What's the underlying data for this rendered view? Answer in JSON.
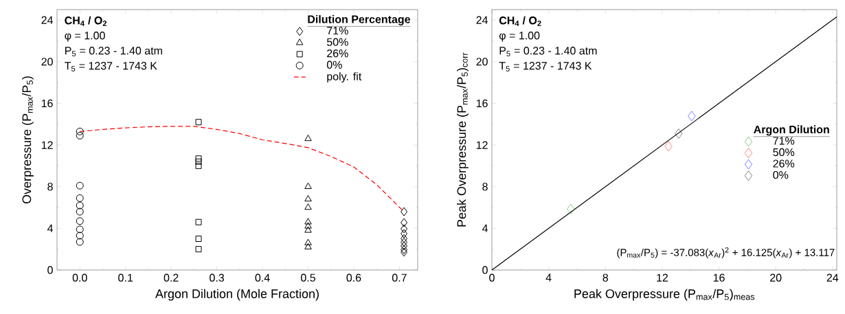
{
  "chart_data": [
    {
      "type": "scatter",
      "xlabel": "Argon Dilution (Mole Fraction)",
      "ylabel": "Overpressure (P$_{max}$/P$_{5}$)",
      "xlim": [
        -0.05,
        0.74
      ],
      "ylim": [
        0,
        25
      ],
      "xticks": [
        {
          "value": 0,
          "label": "0.0"
        },
        0.1,
        0.2,
        0.3,
        0.4,
        0.5,
        0.6,
        0.7
      ],
      "yticks": [
        0,
        4,
        8,
        12,
        16,
        20,
        24
      ],
      "legend": "top right",
      "legend_title": "Dilution Percentage",
      "annotations": [
        "CH$_{4}$ / O$_{2}$",
        "φ = 1.00",
        "P$_{5}$ = 0.23 - 1.40 atm",
        "T$_{5}$ = 1237 - 1743 K"
      ],
      "series": [
        {
          "name": "71%",
          "color": "#000000",
          "marker": "diamond",
          "x": [
            0.71,
            0.71,
            0.71,
            0.71,
            0.71,
            0.71,
            0.71,
            0.71,
            0.71
          ],
          "values": [
            5.6,
            4.55,
            3.96,
            3.49,
            3.02,
            2.67,
            2.31,
            1.96,
            1.72
          ]
        },
        {
          "name": "50%",
          "color": "#000000",
          "marker": "triangle",
          "x": [
            0.5,
            0.5,
            0.5,
            0.5,
            0.5,
            0.5,
            0.5,
            0.5,
            0.5
          ],
          "values": [
            12.6,
            8.0,
            6.8,
            6.0,
            4.6,
            4.2,
            3.8,
            2.6,
            2.2
          ]
        },
        {
          "name": "26%",
          "color": "#000000",
          "marker": "square",
          "x": [
            0.26,
            0.26,
            0.26,
            0.26,
            0.26,
            0.26,
            0.26
          ],
          "values": [
            14.2,
            10.7,
            10.4,
            10.0,
            4.6,
            3.0,
            2.0
          ]
        },
        {
          "name": "0%",
          "color": "#000000",
          "marker": "circle",
          "x": [
            0,
            0,
            0,
            0,
            0,
            0,
            0,
            0,
            0,
            0
          ],
          "values": [
            13.3,
            12.9,
            8.1,
            6.9,
            6.2,
            5.6,
            4.7,
            3.9,
            3.3,
            2.7
          ]
        },
        {
          "name": "poly. fit",
          "type": "line",
          "color": "#ff0000",
          "marker": "none",
          "line_style": "dashed",
          "x": [
            0,
            0.05,
            0.1,
            0.15,
            0.2,
            0.25,
            0.3,
            0.35,
            0.4,
            0.45,
            0.5,
            0.55,
            0.6,
            0.65,
            0.71
          ],
          "values": [
            13.3,
            13.5,
            13.65,
            13.75,
            13.8,
            13.8,
            13.5,
            13.1,
            12.5,
            12.15,
            11.75,
            10.9,
            9.9,
            8.2,
            5.6
          ]
        }
      ]
    },
    {
      "type": "scatter",
      "xlabel": "Peak Overpressure (P$_{max}$/P$_{5}$)$_{meas}$",
      "ylabel": "Peak Overpressure (P$_{max}$/P$_{5}$)$_{corr}$",
      "xlim": [
        0,
        24.3
      ],
      "ylim": [
        0,
        25
      ],
      "xticks": [
        0,
        4,
        8,
        12,
        16,
        20,
        24
      ],
      "yticks": [
        0,
        4,
        8,
        12,
        16,
        20,
        24
      ],
      "legend": "right",
      "legend_title": "Argon Dilution",
      "annotations": [
        "CH$_{4}$ / O$_{2}$",
        "φ = 1.00",
        "P$_{5}$ = 0.23 - 1.40 atm",
        "T$_{5}$ = 1237 - 1743 K",
        "(P$_{max}$/P$_{5}$) = -37.083(*x*$_{Ar}$)$^{2}$ + 16.125(*x*$_{Ar}$) + 13.117"
      ],
      "series": [
        {
          "type": "line",
          "color": "#000000",
          "marker": "none",
          "line_style": "solid",
          "x": [
            0,
            24.3
          ],
          "values": [
            0,
            24.3
          ]
        },
        {
          "name": "71%",
          "color": "#009900",
          "marker": "diamond",
          "x": [
            5.56
          ],
          "values": [
            5.86
          ]
        },
        {
          "name": "50%",
          "color": "#ff0000",
          "marker": "diamond",
          "x": [
            12.44
          ],
          "values": [
            11.88
          ]
        },
        {
          "name": "26%",
          "color": "#0000ff",
          "marker": "diamond",
          "x": [
            14.08
          ],
          "values": [
            14.78
          ]
        },
        {
          "name": "0%",
          "color": "#000000",
          "marker": "diamond",
          "x": [
            13.16
          ],
          "values": [
            13.09
          ]
        }
      ]
    }
  ]
}
